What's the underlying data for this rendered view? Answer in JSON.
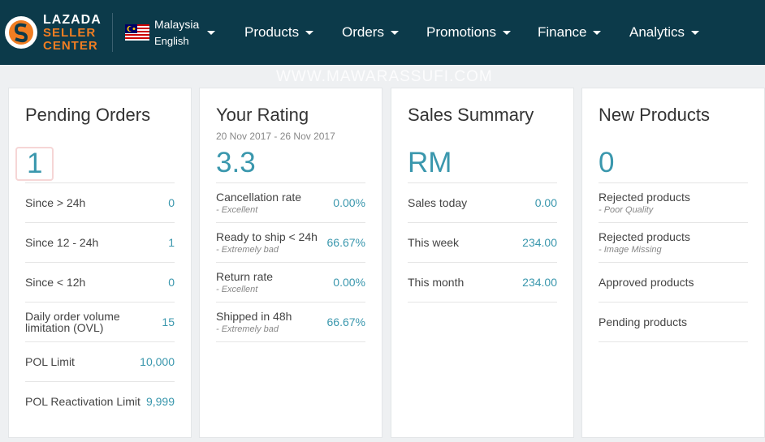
{
  "header": {
    "logo": {
      "line1": "LAZADA",
      "line2": "SELLER",
      "line3": "CENTER"
    },
    "country": "Malaysia",
    "language": "English",
    "nav": [
      "Products",
      "Orders",
      "Promotions",
      "Finance",
      "Analytics"
    ]
  },
  "watermark": "WWW.MAWARASSUFI.COM",
  "cards": [
    {
      "title": "Pending Orders",
      "big": "1",
      "rows": [
        {
          "label": "Since > 24h",
          "value": "0"
        },
        {
          "label": "Since 12 - 24h",
          "value": "1"
        },
        {
          "label": "Since < 12h",
          "value": "0"
        },
        {
          "label": "Daily order volume limitation (OVL)",
          "value": "15"
        },
        {
          "label": "POL Limit",
          "value": "10,000"
        },
        {
          "label": "POL Reactivation Limit",
          "value": "9,999"
        }
      ]
    },
    {
      "title": "Your Rating",
      "subtitle": "20 Nov 2017 - 26 Nov 2017",
      "big": "3.3",
      "rows": [
        {
          "label": "Cancellation rate",
          "sub": "- Excellent",
          "value": "0.00%"
        },
        {
          "label": "Ready to ship < 24h",
          "sub": "- Extremely bad",
          "value": "66.67%"
        },
        {
          "label": "Return rate",
          "sub": "- Excellent",
          "value": "0.00%"
        },
        {
          "label": "Shipped in 48h",
          "sub": "- Extremely bad",
          "value": "66.67%"
        }
      ]
    },
    {
      "title": "Sales Summary",
      "big": "RM",
      "rows": [
        {
          "label": "Sales today",
          "value": "0.00"
        },
        {
          "label": "This week",
          "value": "234.00"
        },
        {
          "label": "This month",
          "value": "234.00"
        }
      ]
    },
    {
      "title": "New Products",
      "big": "0",
      "rows": [
        {
          "label": "Rejected products",
          "sub": "- Poor Quality"
        },
        {
          "label": "Rejected products",
          "sub": "- Image Missing"
        },
        {
          "label": "Approved products"
        },
        {
          "label": "Pending products"
        }
      ]
    }
  ]
}
